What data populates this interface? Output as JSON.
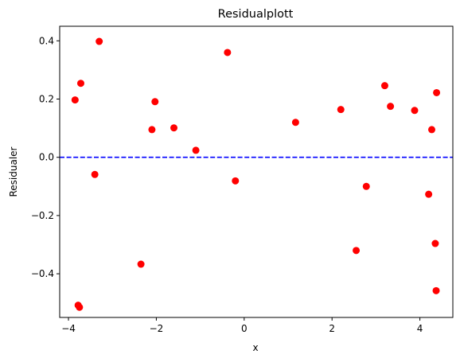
{
  "chart_data": {
    "type": "scatter",
    "title": "Residualplott",
    "xlabel": "x",
    "ylabel": "Residualer",
    "xlim": [
      -4.2,
      4.75
    ],
    "ylim": [
      -0.55,
      0.45
    ],
    "xticks": [
      -4,
      -2,
      0,
      2,
      4
    ],
    "yticks": [
      -0.4,
      -0.2,
      0.0,
      0.2,
      0.4
    ],
    "xtick_labels": [
      "−4",
      "−2",
      "0",
      "2",
      "4"
    ],
    "ytick_labels": [
      "−0.4",
      "−0.2",
      "0.0",
      "0.2",
      "0.4"
    ],
    "grid": false,
    "reference_line": {
      "y": 0.0,
      "style": "dashed",
      "color": "#0000ff"
    },
    "marker_color": "#ff0000",
    "points": [
      {
        "x": -3.85,
        "y": 0.197
      },
      {
        "x": -3.78,
        "y": -0.508
      },
      {
        "x": -3.75,
        "y": -0.515
      },
      {
        "x": -3.72,
        "y": 0.254
      },
      {
        "x": -3.4,
        "y": -0.059
      },
      {
        "x": -3.3,
        "y": 0.398
      },
      {
        "x": -2.35,
        "y": -0.367
      },
      {
        "x": -2.1,
        "y": 0.095
      },
      {
        "x": -2.03,
        "y": 0.191
      },
      {
        "x": -1.6,
        "y": 0.101
      },
      {
        "x": -1.1,
        "y": 0.024
      },
      {
        "x": -0.38,
        "y": 0.36
      },
      {
        "x": -0.2,
        "y": -0.081
      },
      {
        "x": 1.17,
        "y": 0.12
      },
      {
        "x": 2.2,
        "y": 0.164
      },
      {
        "x": 2.55,
        "y": -0.32
      },
      {
        "x": 2.78,
        "y": -0.1
      },
      {
        "x": 3.2,
        "y": 0.246
      },
      {
        "x": 3.33,
        "y": 0.175
      },
      {
        "x": 3.88,
        "y": 0.161
      },
      {
        "x": 4.2,
        "y": -0.127
      },
      {
        "x": 4.27,
        "y": 0.095
      },
      {
        "x": 4.35,
        "y": -0.296
      },
      {
        "x": 4.37,
        "y": -0.458
      },
      {
        "x": 4.38,
        "y": 0.222
      }
    ]
  }
}
